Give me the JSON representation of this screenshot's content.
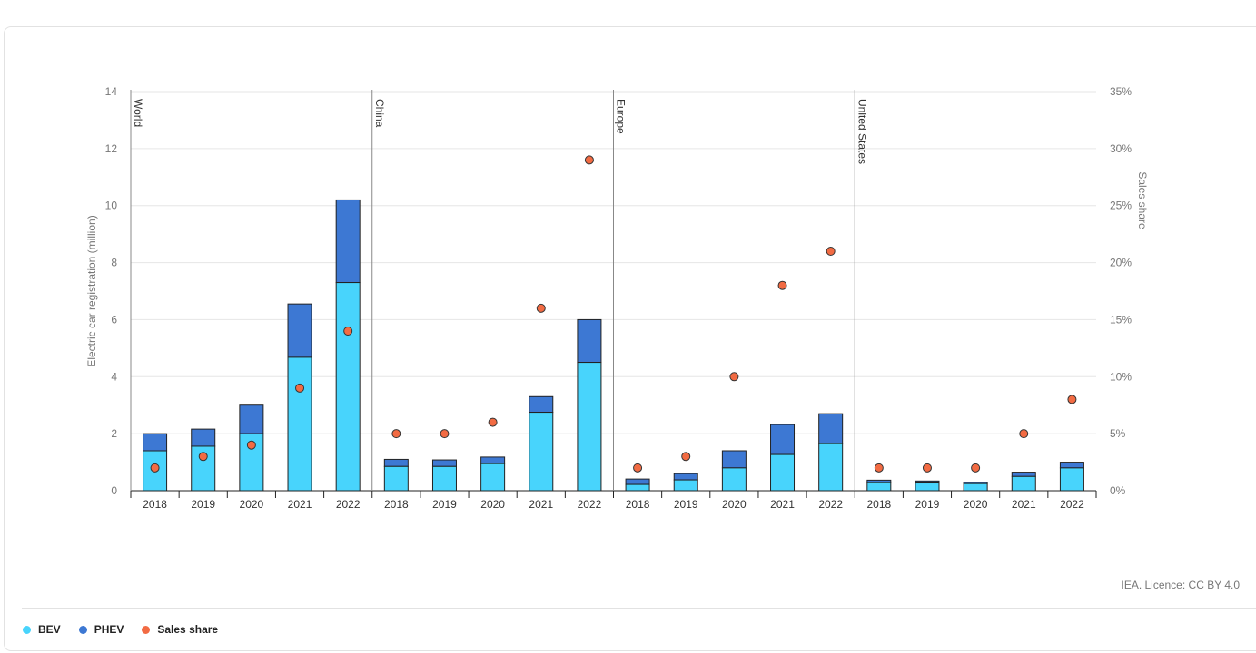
{
  "chart_data": {
    "type": "bar",
    "stacked": true,
    "groups": [
      "World",
      "China",
      "Europe",
      "United States"
    ],
    "categories": [
      "2018",
      "2019",
      "2020",
      "2021",
      "2022"
    ],
    "ylabel": "Electric car registration (million)",
    "y2label": "Sales share",
    "ylim": [
      0,
      14
    ],
    "y2lim": [
      0,
      35
    ],
    "yticks": [
      "0",
      "2",
      "4",
      "6",
      "8",
      "10",
      "12",
      "14"
    ],
    "y2ticks": [
      "0%",
      "5%",
      "10%",
      "15%",
      "20%",
      "25%",
      "30%",
      "35%"
    ],
    "grid": true,
    "legend_position": "bottom-left",
    "series": [
      {
        "name": "BEV",
        "color": "#48d4fc",
        "values": [
          [
            1.4,
            1.56,
            2.0,
            4.68,
            7.3
          ],
          [
            0.85,
            0.85,
            0.95,
            2.75,
            4.5
          ],
          [
            0.22,
            0.38,
            0.8,
            1.27,
            1.65
          ],
          [
            0.28,
            0.27,
            0.25,
            0.5,
            0.8
          ]
        ]
      },
      {
        "name": "PHEV",
        "color": "#3d78d3",
        "values": [
          [
            0.6,
            0.6,
            1.0,
            1.87,
            2.9
          ],
          [
            0.25,
            0.23,
            0.23,
            0.55,
            1.5
          ],
          [
            0.19,
            0.22,
            0.6,
            1.05,
            1.05
          ],
          [
            0.09,
            0.07,
            0.05,
            0.15,
            0.2
          ]
        ]
      },
      {
        "name": "Sales share",
        "color": "#f26b43",
        "axis": "right",
        "values": [
          [
            2,
            3,
            4,
            9,
            14
          ],
          [
            5,
            5,
            6,
            16,
            29
          ],
          [
            2,
            3,
            10,
            18,
            21
          ],
          [
            2,
            2,
            2,
            5,
            8
          ]
        ]
      }
    ]
  },
  "source": "IEA. Licence: CC BY 4.0",
  "legend": [
    "BEV",
    "PHEV",
    "Sales share"
  ]
}
